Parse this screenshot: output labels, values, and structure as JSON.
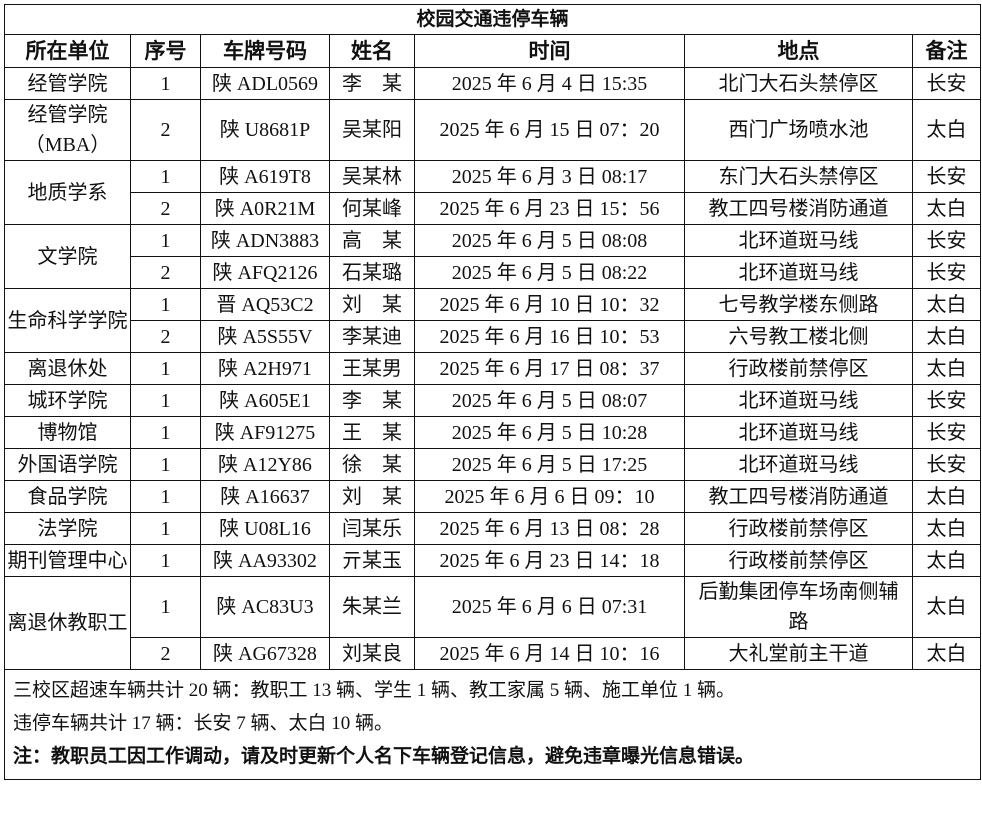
{
  "title": "校园交通违停车辆",
  "columns": [
    "所在单位",
    "序号",
    "车牌号码",
    "姓名",
    "时间",
    "地点",
    "备注"
  ],
  "groups": [
    {
      "unit": "经管学院",
      "entries": [
        {
          "no": "1",
          "plate": "陕 ADL0569",
          "name": "李　某",
          "time": "2025 年 6 月 4 日 15:35",
          "place": "北门大石头禁停区",
          "note": "长安"
        }
      ]
    },
    {
      "unit": "经管学院（MBA）",
      "entries": [
        {
          "no": "2",
          "plate": "陕 U8681P",
          "name": "吴某阳",
          "time": "2025 年 6 月 15 日 07：20",
          "place": "西门广场喷水池",
          "note": "太白"
        }
      ]
    },
    {
      "unit": "地质学系",
      "entries": [
        {
          "no": "1",
          "plate": "陕 A619T8",
          "name": "吴某林",
          "time": "2025 年 6 月 3 日 08:17",
          "place": "东门大石头禁停区",
          "note": "长安"
        },
        {
          "no": "2",
          "plate": "陕 A0R21M",
          "name": "何某峰",
          "time": "2025 年 6 月 23 日 15：56",
          "place": "教工四号楼消防通道",
          "note": "太白"
        }
      ]
    },
    {
      "unit": "文学院",
      "entries": [
        {
          "no": "1",
          "plate": "陕 ADN3883",
          "name": "高　某",
          "time": "2025 年 6 月 5 日 08:08",
          "place": "北环道斑马线",
          "note": "长安"
        },
        {
          "no": "2",
          "plate": "陕 AFQ2126",
          "name": "石某璐",
          "time": "2025 年 6 月 5 日 08:22",
          "place": "北环道斑马线",
          "note": "长安"
        }
      ]
    },
    {
      "unit": "生命科学学院",
      "entries": [
        {
          "no": "1",
          "plate": "晋 AQ53C2",
          "name": "刘　某",
          "time": "2025 年 6 月 10 日 10：32",
          "place": "七号教学楼东侧路",
          "note": "太白"
        },
        {
          "no": "2",
          "plate": "陕 A5S55V",
          "name": "李某迪",
          "time": "2025 年 6 月 16 日 10：53",
          "place": "六号教工楼北侧",
          "note": "太白"
        }
      ]
    },
    {
      "unit": "离退休处",
      "entries": [
        {
          "no": "1",
          "plate": "陕 A2H971",
          "name": "王某男",
          "time": "2025 年 6 月 17 日 08：37",
          "place": "行政楼前禁停区",
          "note": "太白"
        }
      ]
    },
    {
      "unit": "城环学院",
      "entries": [
        {
          "no": "1",
          "plate": "陕 A605E1",
          "name": "李　某",
          "time": "2025 年 6 月 5 日 08:07",
          "place": "北环道斑马线",
          "note": "长安"
        }
      ]
    },
    {
      "unit": "博物馆",
      "entries": [
        {
          "no": "1",
          "plate": "陕 AF91275",
          "name": "王　某",
          "time": "2025 年 6 月 5 日 10:28",
          "place": "北环道斑马线",
          "note": "长安"
        }
      ]
    },
    {
      "unit": "外国语学院",
      "entries": [
        {
          "no": "1",
          "plate": "陕 A12Y86",
          "name": "徐　某",
          "time": "2025 年 6 月 5 日 17:25",
          "place": "北环道斑马线",
          "note": "长安"
        }
      ]
    },
    {
      "unit": "食品学院",
      "entries": [
        {
          "no": "1",
          "plate": "陕 A16637",
          "name": "刘　某",
          "time": "2025 年 6 月 6 日 09：10",
          "place": "教工四号楼消防通道",
          "note": "太白"
        }
      ]
    },
    {
      "unit": "法学院",
      "entries": [
        {
          "no": "1",
          "plate": "陕 U08L16",
          "name": "闫某乐",
          "time": "2025 年 6 月 13 日 08：28",
          "place": "行政楼前禁停区",
          "note": "太白"
        }
      ]
    },
    {
      "unit": "期刊管理中心",
      "entries": [
        {
          "no": "1",
          "plate": "陕 AA93302",
          "name": "亓某玉",
          "time": "2025 年 6 月 23 日 14：18",
          "place": "行政楼前禁停区",
          "note": "太白"
        }
      ]
    },
    {
      "unit": "离退休教职工",
      "entries": [
        {
          "no": "1",
          "plate": "陕 AC83U3",
          "name": "朱某兰",
          "time": "2025 年 6 月 6 日 07:31",
          "place": "后勤集团停车场南侧辅路",
          "note": "太白"
        },
        {
          "no": "2",
          "plate": "陕 AG67328",
          "name": "刘某良",
          "time": "2025 年 6 月 14 日 10：16",
          "place": "大礼堂前主干道",
          "note": "太白"
        }
      ]
    }
  ],
  "footer": {
    "line1": "三校区超速车辆共计 20 辆：教职工 13 辆、学生 1 辆、教工家属 5 辆、施工单位 1 辆。",
    "line2": "违停车辆共计 17 辆：长安 7 辆、太白 10 辆。",
    "note": "注：教职员工因工作调动，请及时更新个人名下车辆登记信息，避免违章曝光信息错误。"
  }
}
